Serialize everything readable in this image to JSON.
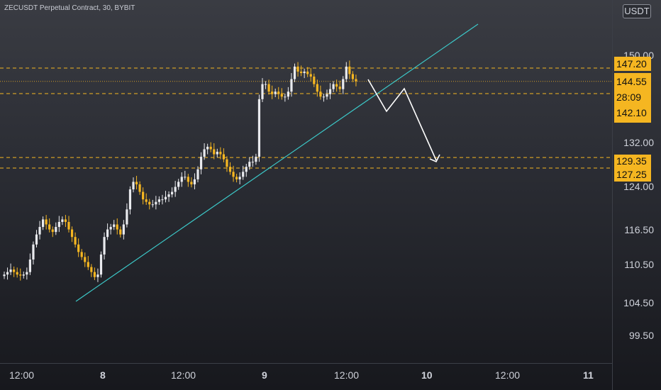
{
  "header": {
    "symbol_title": "ZECUSDT Perpetual Contract, 30, BYBIT",
    "currency": "USDT"
  },
  "colors": {
    "candle_up": "#e9eaee",
    "candle_down": "#f5b621",
    "level_line": "#f5b621",
    "trendline": "#3cc8c8",
    "projection": "#ffffff",
    "price_tag_bg": "#f5b621"
  },
  "price_tags": {
    "level_147": "147.20",
    "current_price": "144.55",
    "countdown": "28:09",
    "level_142": "142.10",
    "level_129": "129.35",
    "level_127": "127.25"
  },
  "chart_data": {
    "type": "candlestick",
    "title": "ZECUSDT Perpetual Contract, 30, BYBIT",
    "y_ticks": [
      "150.00",
      "132.00",
      "124.00",
      "116.50",
      "110.50",
      "104.50",
      "99.50"
    ],
    "x_ticks": [
      "12:00",
      "8",
      "12:00",
      "9",
      "12:00",
      "10",
      "12:00",
      "11"
    ],
    "ylim": [
      96,
      157
    ],
    "levels": [
      147.2,
      142.1,
      129.35,
      127.25
    ],
    "current_price": 144.55,
    "series_close": [
      106,
      106.5,
      107,
      106.5,
      106,
      105.8,
      106,
      106.5,
      109,
      112,
      114,
      115.5,
      117,
      116,
      115,
      114.5,
      115.5,
      116.5,
      117,
      116.5,
      115,
      113.5,
      112,
      110.5,
      109.5,
      108.5,
      107.5,
      106.5,
      105.5,
      106,
      110,
      113.5,
      115,
      115.5,
      116,
      115,
      114,
      116,
      119,
      123,
      124.5,
      124,
      122.5,
      121,
      120.5,
      120,
      120,
      120.5,
      121,
      121,
      121.5,
      122,
      122.5,
      123.5,
      124.5,
      125.5,
      125.5,
      124.5,
      124,
      125,
      127,
      129.5,
      131,
      131.5,
      131,
      130,
      130.5,
      130,
      129,
      127.5,
      126.5,
      125.5,
      125,
      125.5,
      126.5,
      127.5,
      128.5,
      128.5,
      129.5,
      141,
      144,
      144,
      142.5,
      142,
      142.5,
      142,
      141.5,
      141.5,
      142.5,
      145,
      147.5,
      146.5,
      146.2,
      146.5,
      146,
      145.5,
      144,
      142.5,
      141.5,
      141.5,
      142,
      143,
      144,
      143.5,
      143,
      145,
      147.5,
      146,
      145,
      144.55
    ]
  }
}
